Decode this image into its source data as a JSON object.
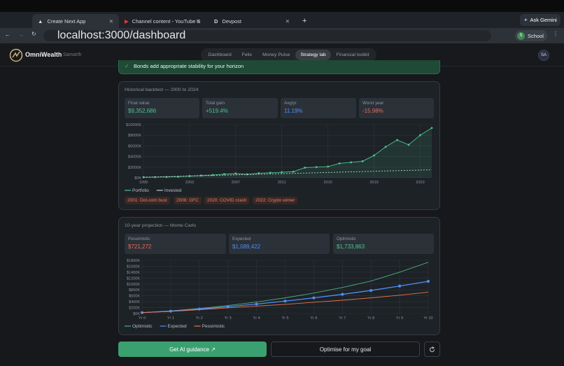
{
  "browser": {
    "tabs": [
      "Create Next App",
      "Channel content - YouTube S",
      "Devpost"
    ],
    "ask": "Ask Gemini",
    "url": "localhost:3000/dashboard",
    "profile": "School",
    "profile_initial": "S"
  },
  "app": {
    "brand": "OmniWealth",
    "user": "Samarth",
    "nav": [
      "Dashboard",
      "Felix",
      "Money Pulse",
      "Strategy lab",
      "Financial toolkit"
    ],
    "avatar": "SA"
  },
  "banner": "Bonds add appropriate stability for your horizon",
  "backtest": {
    "stats": [
      {
        "label": "Final value",
        "value": "$9,352,686"
      },
      {
        "label": "Total gain",
        "value": "+519.4%"
      },
      {
        "label": "Avg/yr",
        "value": "11.19%"
      },
      {
        "label": "Worst year",
        "value": "-15.98%"
      }
    ]
  },
  "projection": {
    "stats": [
      {
        "label": "Pessimistic",
        "value": "$721,272"
      },
      {
        "label": "Expected",
        "value": "$1,089,422"
      },
      {
        "label": "Optimistic",
        "value": "$1,733,863"
      }
    ]
  },
  "actions": [
    "Get AI guidance ↗",
    "Optimise for my goal"
  ],
  "chart_data": [
    {
      "type": "line",
      "title": "Historical backtest — 2000 to 2024",
      "area": true,
      "x": [
        1999,
        2000,
        2001,
        2002,
        2003,
        2004,
        2005,
        2006,
        2007,
        2008,
        2009,
        2010,
        2011,
        2012,
        2013,
        2014,
        2015,
        2016,
        2017,
        2018,
        2019,
        2020,
        2021,
        2022,
        2023,
        2024
      ],
      "xlim": [
        1999,
        2024
      ],
      "xticks": [
        1999,
        2003,
        2007,
        2011,
        2015,
        2019,
        2023
      ],
      "ylim": [
        0,
        10000
      ],
      "yticks": [
        {
          "value": 0,
          "label": "$0K"
        },
        {
          "value": 2000,
          "label": "$2000K"
        },
        {
          "value": 4000,
          "label": "$4000K"
        },
        {
          "value": 6000,
          "label": "$6000K"
        },
        {
          "value": 8000,
          "label": "$8000K"
        },
        {
          "value": 10000,
          "label": "$10000K"
        }
      ],
      "grid": true,
      "series": [
        {
          "name": "Portfolio",
          "color": "#4ec48f",
          "markers": true,
          "values": [
            100,
            120,
            150,
            200,
            320,
            420,
            520,
            680,
            800,
            650,
            850,
            950,
            1050,
            1150,
            1900,
            2000,
            2100,
            2700,
            2900,
            3100,
            4200,
            5800,
            7100,
            6200,
            8000,
            9352.686
          ]
        },
        {
          "name": "Invested",
          "color": "#c9ced4",
          "dashed": true,
          "values": [
            100,
            156,
            212,
            268,
            324,
            380,
            436,
            492,
            548,
            604,
            660,
            716,
            772,
            828,
            884,
            940,
            996,
            1052,
            1108,
            1164,
            1220,
            1276,
            1332,
            1388,
            1444,
            1500
          ]
        }
      ],
      "annotations": [
        "2001: Dot-com bust",
        "2008: GFC",
        "2020: COVID crash",
        "2022: Crypto winter"
      ]
    },
    {
      "type": "line",
      "title": "10-year projection — Monte Carlo",
      "categories": [
        "Yr 0",
        "Yr 1",
        "Yr 2",
        "Yr 3",
        "Yr 4",
        "Yr 5",
        "Yr 6",
        "Yr 7",
        "Yr 8",
        "Yr 9",
        "Yr 10"
      ],
      "ylim": [
        0,
        1800
      ],
      "yticks": [
        {
          "value": 0,
          "label": "$0K"
        },
        {
          "value": 200,
          "label": "$200K"
        },
        {
          "value": 400,
          "label": "$400K"
        },
        {
          "value": 600,
          "label": "$600K"
        },
        {
          "value": 800,
          "label": "$800K"
        },
        {
          "value": 1000,
          "label": "$1000K"
        },
        {
          "value": 1200,
          "label": "$1200K"
        },
        {
          "value": 1400,
          "label": "$1400K"
        },
        {
          "value": 1600,
          "label": "$1600K"
        },
        {
          "value": 1800,
          "label": "$1800K"
        }
      ],
      "grid": true,
      "series": [
        {
          "name": "Optimistic",
          "color": "#4caf7d",
          "values": [
            30,
            90,
            170,
            270,
            390,
            530,
            690,
            880,
            1100,
            1400,
            1733.863
          ]
        },
        {
          "name": "Expected",
          "color": "#4f8ff7",
          "markers": true,
          "values": [
            30,
            80,
            150,
            230,
            320,
            420,
            530,
            650,
            780,
            930,
            1089.422
          ]
        },
        {
          "name": "Pessimistic",
          "color": "#e8734a",
          "values": [
            30,
            70,
            130,
            190,
            250,
            310,
            380,
            450,
            530,
            620,
            721.272
          ]
        }
      ]
    }
  ]
}
